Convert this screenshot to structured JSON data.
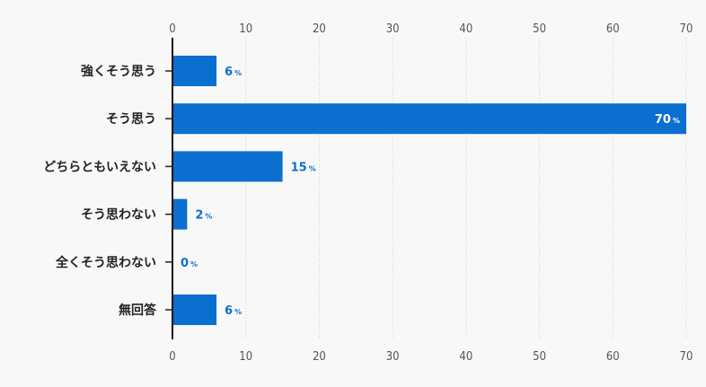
{
  "chart_data": {
    "type": "bar",
    "orientation": "horizontal",
    "categories": [
      "強くそう思う",
      "そう思う",
      "どちらともいえない",
      "そう思わない",
      "全くそう思わない",
      "無回答"
    ],
    "values": [
      6,
      70,
      15,
      2,
      0,
      6
    ],
    "unit": "%",
    "xlim": [
      0,
      70
    ],
    "xticks": [
      0,
      10,
      20,
      30,
      40,
      50,
      60,
      70
    ],
    "tick_axes": "top-and-bottom",
    "grid": true,
    "bar_color": "#0b6fd0",
    "label_color": "#0b6fd0",
    "label_color_inside": "#ffffff"
  }
}
